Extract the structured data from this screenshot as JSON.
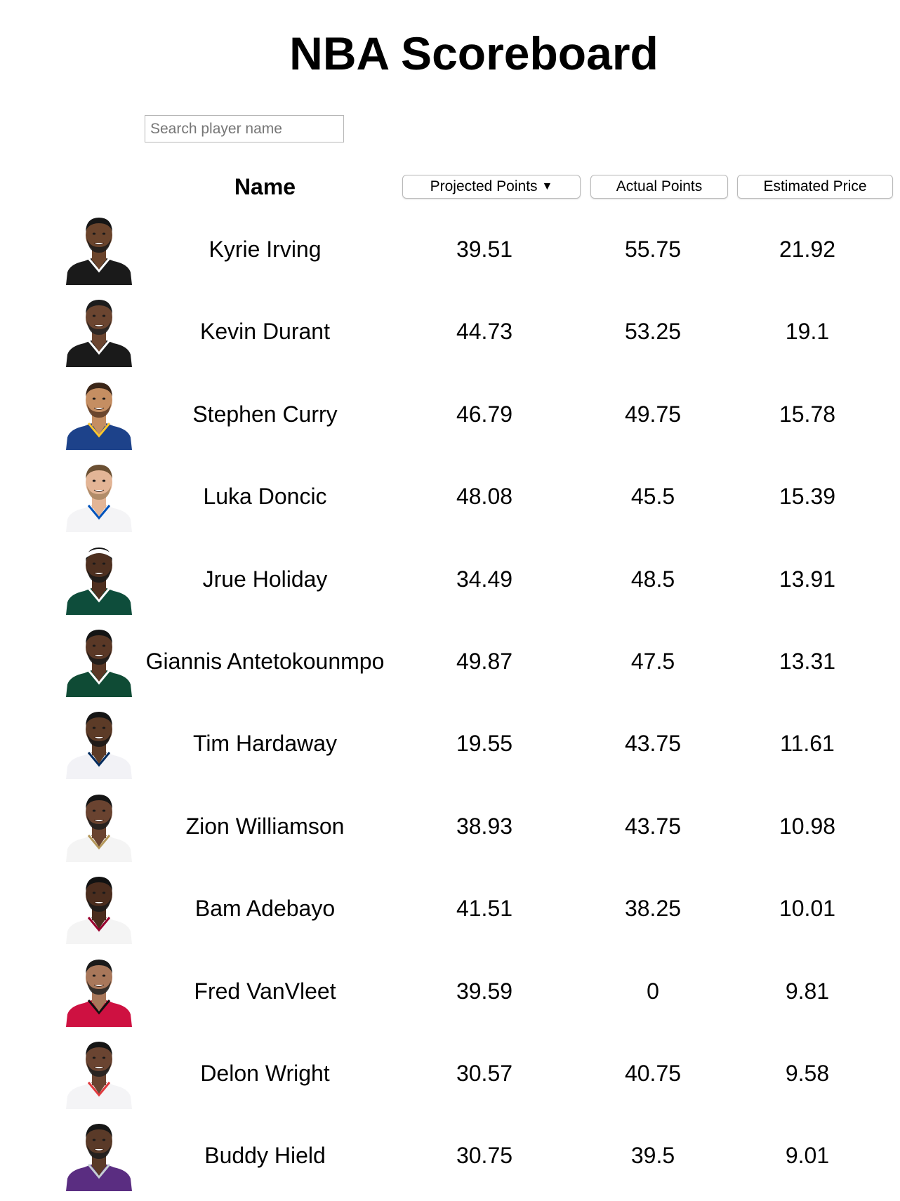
{
  "title": "NBA Scoreboard",
  "search": {
    "placeholder": "Search player name",
    "value": ""
  },
  "headers": {
    "name": "Name",
    "projected": "Projected Points",
    "projected_sort_icon": "▼",
    "actual": "Actual Points",
    "price": "Estimated Price"
  },
  "players": [
    {
      "name": "Kyrie Irving",
      "projected": "39.51",
      "actual": "55.75",
      "price": "21.92",
      "avatar": {
        "skin": "#6a442c",
        "hair": "#161616",
        "jersey": "#1a1a1a",
        "trim": "#ffffff",
        "beard": "#1b1b1b",
        "headband": ""
      }
    },
    {
      "name": "Kevin Durant",
      "projected": "44.73",
      "actual": "53.25",
      "price": "19.1",
      "avatar": {
        "skin": "#6b4530",
        "hair": "#1c1c1c",
        "jersey": "#1a1a1a",
        "trim": "#ffffff",
        "beard": "#222222",
        "headband": ""
      }
    },
    {
      "name": "Stephen Curry",
      "projected": "46.79",
      "actual": "49.75",
      "price": "15.78",
      "avatar": {
        "skin": "#c58e62",
        "hair": "#3b2618",
        "jersey": "#1d428a",
        "trim": "#ffc72c",
        "beard": "#5a3a24",
        "headband": ""
      }
    },
    {
      "name": "Luka Doncic",
      "projected": "48.08",
      "actual": "45.5",
      "price": "15.39",
      "avatar": {
        "skin": "#e3b596",
        "hair": "#6b5033",
        "jersey": "#f4f4f6",
        "trim": "#0053bc",
        "beard": "#a88561",
        "headband": ""
      }
    },
    {
      "name": "Jrue Holiday",
      "projected": "34.49",
      "actual": "48.5",
      "price": "13.91",
      "avatar": {
        "skin": "#4e3020",
        "hair": "#141414",
        "jersey": "#0e4d3b",
        "trim": "#ffffff",
        "beard": "#1a1a1a",
        "headband": "#ffffff"
      }
    },
    {
      "name": "Giannis Antetokounmpo",
      "projected": "49.87",
      "actual": "47.5",
      "price": "13.31",
      "avatar": {
        "skin": "#5a3826",
        "hair": "#141414",
        "jersey": "#0f4b35",
        "trim": "#ffffff",
        "beard": "#1a1a1a",
        "headband": ""
      }
    },
    {
      "name": "Tim Hardaway",
      "projected": "19.55",
      "actual": "43.75",
      "price": "11.61",
      "avatar": {
        "skin": "#5c3b27",
        "hair": "#151515",
        "jersey": "#f2f2f6",
        "trim": "#002b5e",
        "beard": "#161616",
        "headband": ""
      }
    },
    {
      "name": "Zion Williamson",
      "projected": "38.93",
      "actual": "43.75",
      "price": "10.98",
      "avatar": {
        "skin": "#6a4330",
        "hair": "#151515",
        "jersey": "#f4f4f4",
        "trim": "#b4975a",
        "beard": "#1c1c1c",
        "headband": ""
      }
    },
    {
      "name": "Bam Adebayo",
      "projected": "41.51",
      "actual": "38.25",
      "price": "10.01",
      "avatar": {
        "skin": "#4b2d1e",
        "hair": "#121212",
        "jersey": "#f4f4f4",
        "trim": "#98002e",
        "beard": "#1b1b1b",
        "headband": ""
      }
    },
    {
      "name": "Fred VanVleet",
      "projected": "39.59",
      "actual": "0",
      "price": "9.81",
      "avatar": {
        "skin": "#a8775a",
        "hair": "#1a1a1a",
        "jersey": "#ce1141",
        "trim": "#111111",
        "beard": "#222222",
        "headband": ""
      }
    },
    {
      "name": "Delon Wright",
      "projected": "30.57",
      "actual": "40.75",
      "price": "9.58",
      "avatar": {
        "skin": "#6a4431",
        "hair": "#151515",
        "jersey": "#f4f4f6",
        "trim": "#e03a3e",
        "beard": "#1d1d1d",
        "headband": ""
      }
    },
    {
      "name": "Buddy Hield",
      "projected": "30.75",
      "actual": "39.5",
      "price": "9.01",
      "avatar": {
        "skin": "#5a3a28",
        "hair": "#161616",
        "jersey": "#5a2d81",
        "trim": "#c4ced4",
        "beard": "#1c1c1c",
        "headband": ""
      }
    }
  ]
}
